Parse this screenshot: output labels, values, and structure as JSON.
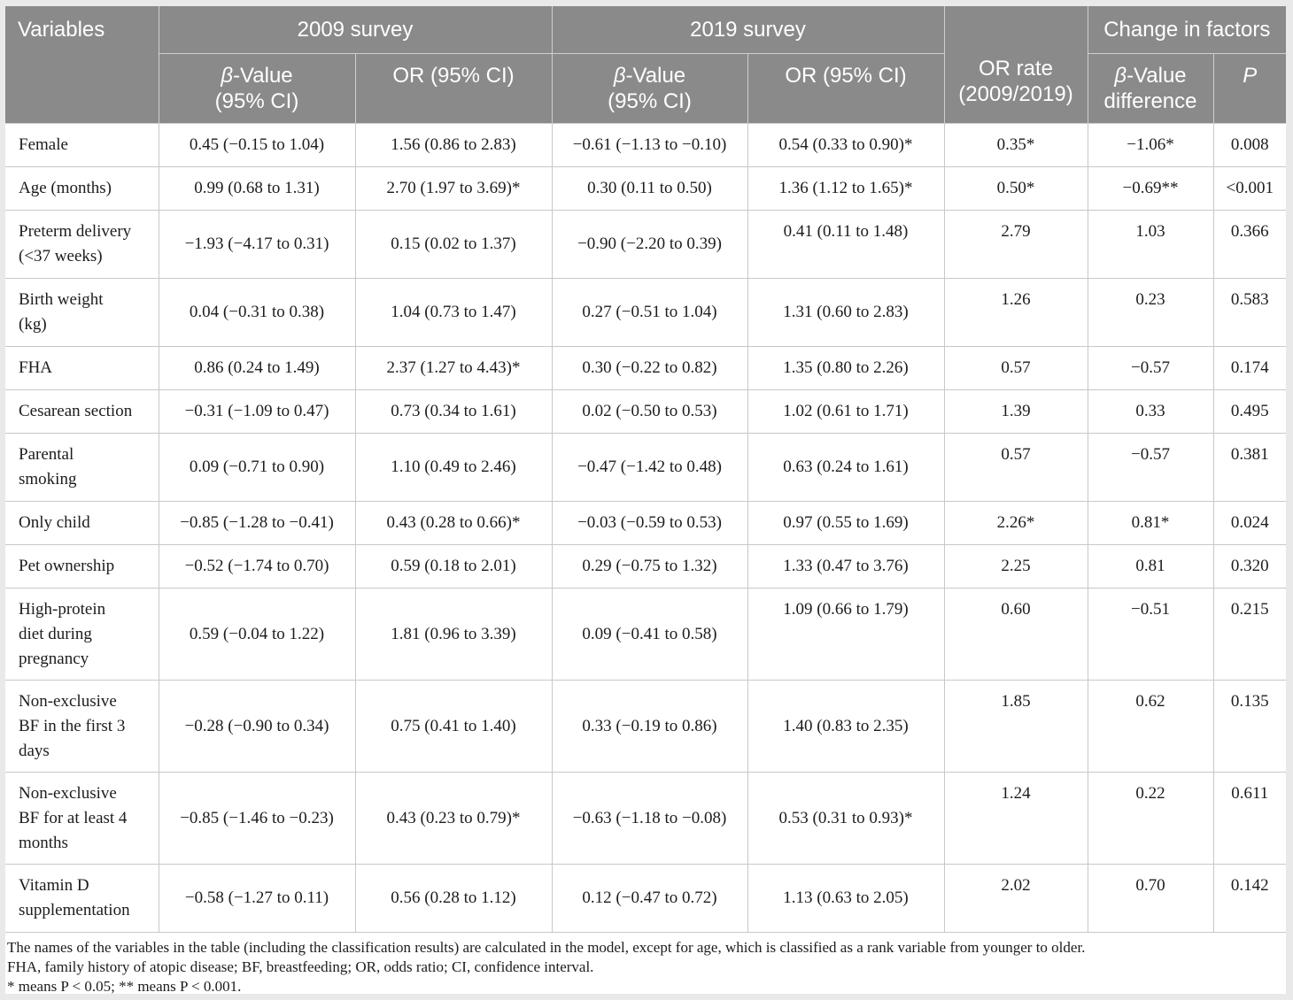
{
  "header": {
    "variables": "Variables",
    "survey_2009": "2009 survey",
    "survey_2019": "2019 survey",
    "or_rate_line1": "OR rate",
    "or_rate_line2": "(2009/2019)",
    "change": "Change in factors",
    "beta_symbol": "β",
    "beta_value_suffix": "-Value",
    "ci95": "(95% CI)",
    "or_ci": "OR (95% CI)",
    "beta_diff_line2": "difference",
    "p": "P"
  },
  "rows": [
    {
      "var": [
        "Female"
      ],
      "b2009": "0.45 (−0.15 to 1.04)",
      "or2009": "1.56 (0.86 to 2.83)",
      "b2019": "−0.61 (−1.13 to −0.10)",
      "or2019": "0.54 (0.33 to 0.90)*",
      "orrate": "0.35*",
      "bdiff": "−1.06*",
      "p": "0.008"
    },
    {
      "var": [
        "Age (months)"
      ],
      "b2009": "0.99 (0.68 to 1.31)",
      "or2009": "2.70 (1.97 to 3.69)*",
      "b2019": "0.30 (0.11 to 0.50)",
      "or2019": "1.36 (1.12 to 1.65)*",
      "orrate": "0.50*",
      "bdiff": "−0.69**",
      "p": "<0.001"
    },
    {
      "var": [
        "Preterm delivery",
        "(<37 weeks)"
      ],
      "b2009": "−1.93 (−4.17 to 0.31)",
      "or2009": "0.15 (0.02 to 1.37)",
      "b2019": "−0.90 (−2.20 to 0.39)",
      "or2019": "0.41 (0.11 to 1.48)",
      "orrate": "2.79",
      "bdiff": "1.03",
      "p": "0.366"
    },
    {
      "var": [
        "Birth weight",
        "(kg)"
      ],
      "b2009": "0.04 (−0.31 to 0.38)",
      "or2009": "1.04 (0.73 to 1.47)",
      "b2019": "0.27 (−0.51 to 1.04)",
      "or2019": "1.31 (0.60 to 2.83)",
      "orrate": "1.26",
      "bdiff": "0.23",
      "p": "0.583"
    },
    {
      "var": [
        "FHA"
      ],
      "b2009": "0.86 (0.24 to 1.49)",
      "or2009": "2.37 (1.27 to 4.43)*",
      "b2019": "0.30 (−0.22 to 0.82)",
      "or2019": "1.35 (0.80 to 2.26)",
      "orrate": "0.57",
      "bdiff": "−0.57",
      "p": "0.174"
    },
    {
      "var": [
        "Cesarean section"
      ],
      "b2009": "−0.31 (−1.09 to 0.47)",
      "or2009": "0.73 (0.34 to 1.61)",
      "b2019": "0.02 (−0.50 to 0.53)",
      "or2019": "1.02 (0.61 to 1.71)",
      "orrate": "1.39",
      "bdiff": "0.33",
      "p": "0.495"
    },
    {
      "var": [
        "Parental",
        "smoking"
      ],
      "b2009": "0.09 (−0.71 to 0.90)",
      "or2009": "1.10 (0.49 to 2.46)",
      "b2019": "−0.47 (−1.42 to 0.48)",
      "or2019": "0.63 (0.24 to 1.61)",
      "orrate": "0.57",
      "bdiff": "−0.57",
      "p": "0.381"
    },
    {
      "var": [
        "Only child"
      ],
      "b2009": "−0.85 (−1.28 to −0.41)",
      "or2009": "0.43 (0.28 to 0.66)*",
      "b2019": "−0.03 (−0.59 to 0.53)",
      "or2019": "0.97 (0.55 to 1.69)",
      "orrate": "2.26*",
      "bdiff": "0.81*",
      "p": "0.024"
    },
    {
      "var": [
        "Pet ownership"
      ],
      "b2009": "−0.52 (−1.74 to 0.70)",
      "or2009": "0.59 (0.18 to 2.01)",
      "b2019": "0.29 (−0.75 to 1.32)",
      "or2019": "1.33 (0.47 to 3.76)",
      "orrate": "2.25",
      "bdiff": "0.81",
      "p": "0.320"
    },
    {
      "var": [
        "High-protein",
        "diet during",
        "pregnancy"
      ],
      "b2009": "0.59 (−0.04 to 1.22)",
      "or2009": "1.81 (0.96 to 3.39)",
      "b2019": "0.09 (−0.41 to 0.58)",
      "or2019": "1.09 (0.66 to 1.79)",
      "orrate": "0.60",
      "bdiff": "−0.51",
      "p": "0.215"
    },
    {
      "var": [
        "Non-exclusive",
        "BF in the first 3",
        "days"
      ],
      "b2009": "−0.28 (−0.90 to 0.34)",
      "or2009": "0.75 (0.41 to 1.40)",
      "b2019": "0.33 (−0.19 to 0.86)",
      "or2019": "1.40 (0.83 to 2.35)",
      "orrate": "1.85",
      "bdiff": "0.62",
      "p": "0.135"
    },
    {
      "var": [
        "Non-exclusive",
        "BF for at least 4",
        "months"
      ],
      "b2009": "−0.85 (−1.46 to −0.23)",
      "or2009": "0.43 (0.23 to 0.79)*",
      "b2019": "−0.63 (−1.18 to −0.08)",
      "or2019": "0.53 (0.31 to 0.93)*",
      "orrate": "1.24",
      "bdiff": "0.22",
      "p": "0.611"
    },
    {
      "var": [
        "Vitamin D",
        "supplementation"
      ],
      "b2009": "−0.58 (−1.27 to 0.11)",
      "or2009": "0.56 (0.28 to 1.12)",
      "b2019": "0.12 (−0.47 to 0.72)",
      "or2019": "1.13 (0.63 to 2.05)",
      "orrate": "2.02",
      "bdiff": "0.70",
      "p": "0.142"
    }
  ],
  "footnotes": [
    "The names of the variables in the table (including the classification results) are calculated in the model, except for age, which is classified as a rank variable from younger to older.",
    "FHA, family history of atopic disease; BF, breastfeeding; OR, odds ratio; CI, confidence interval.",
    "* means P < 0.05; ** means P < 0.001."
  ],
  "top_aligned": {
    "2": [
      "or2019",
      "orrate",
      "bdiff",
      "p"
    ],
    "3": [
      "orrate",
      "bdiff",
      "p"
    ],
    "6": [
      "orrate",
      "bdiff",
      "p"
    ],
    "9": [
      "or2019",
      "orrate",
      "bdiff",
      "p"
    ],
    "10": [
      "orrate",
      "bdiff",
      "p"
    ],
    "11": [
      "orrate",
      "bdiff",
      "p"
    ],
    "12": [
      "orrate",
      "bdiff",
      "p"
    ]
  }
}
